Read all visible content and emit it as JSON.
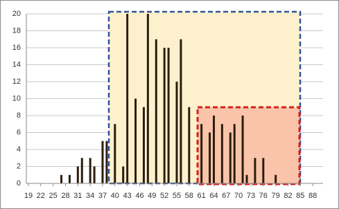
{
  "chart_data": {
    "type": "bar",
    "x": [
      27,
      29,
      31,
      32,
      34,
      35,
      37,
      38,
      40,
      42,
      43,
      45,
      47,
      48,
      50,
      52,
      53,
      55,
      56,
      58,
      61,
      63,
      64,
      66,
      68,
      69,
      71,
      72,
      74,
      76,
      79
    ],
    "values": [
      1,
      1,
      2,
      3,
      3,
      2,
      5,
      5,
      7,
      2,
      20,
      10,
      9,
      20,
      17,
      16,
      16,
      12,
      17,
      9,
      7,
      6,
      8,
      7,
      6,
      7,
      8,
      1,
      3,
      3,
      1
    ],
    "color": "#2b1d0e",
    "xlim": [
      18.5,
      90.5
    ],
    "xticks": [
      19,
      22,
      25,
      28,
      31,
      34,
      37,
      40,
      43,
      46,
      49,
      52,
      55,
      58,
      61,
      64,
      67,
      70,
      73,
      76,
      79,
      82,
      85,
      88
    ],
    "ylim": [
      0,
      20
    ],
    "yticks": [
      0,
      2,
      4,
      6,
      8,
      10,
      12,
      14,
      16,
      18,
      20
    ],
    "grid": true
  }
}
